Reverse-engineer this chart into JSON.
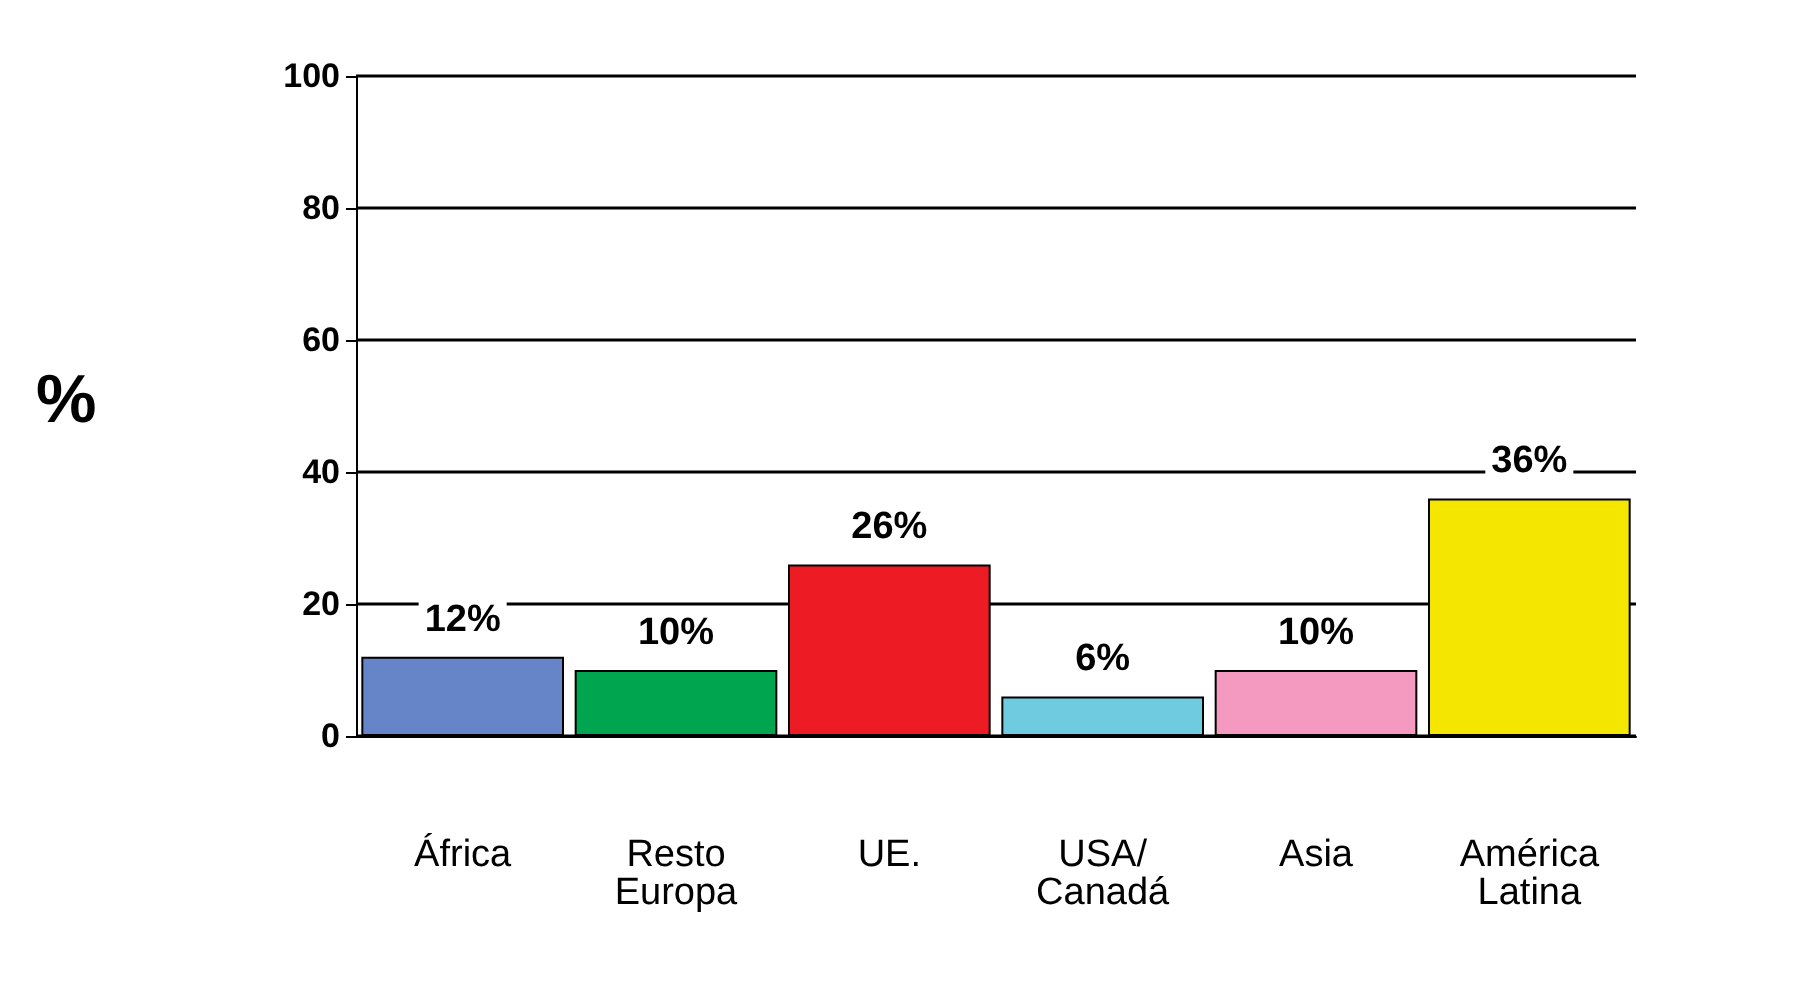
{
  "chart_data": {
    "type": "bar",
    "ylabel": "%",
    "categories": [
      "África",
      "Resto Europa",
      "UE.",
      "USA/ Canadá",
      "Asia",
      "América Latina"
    ],
    "values": [
      12,
      10,
      26,
      6,
      10,
      36
    ],
    "colors": [
      "#6585c8",
      "#00a550",
      "#ed1c24",
      "#6ecbe0",
      "#f49ac1",
      "#f5e600"
    ],
    "value_labels": [
      "12%",
      "10%",
      "26%",
      "6%",
      "10%",
      "36%"
    ],
    "ylim": [
      0,
      100
    ],
    "yticks": [
      0,
      20,
      40,
      60,
      80,
      100
    ],
    "grid": "y"
  }
}
